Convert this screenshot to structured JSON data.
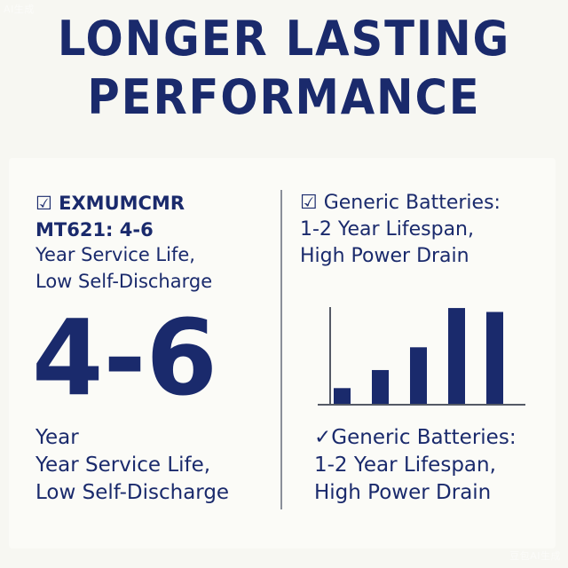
{
  "watermark": {
    "top": "AI生成",
    "bottom": "豆包AI生成"
  },
  "headline": {
    "line1": "LONGER LASTING",
    "line2": "PERFORMANCE"
  },
  "left": {
    "heading_line1": "☑ EXMUMCMR",
    "heading_line2": "MT621: 4-6",
    "sub_line1": "Year Service Life,",
    "sub_line2": "Low Self-Discharge",
    "big_number": "4-6",
    "bottom_line1": "Year",
    "bottom_line2": "Year Service Life,",
    "bottom_line3": "Low Self-Discharge"
  },
  "right": {
    "heading_line1": "☑ Generic Batteries:",
    "heading_line2": "1-2 Year Lifespan,",
    "heading_line3": "High Power Drain",
    "bottom_line1": "✓Generic Batteries:",
    "bottom_line2": "1-2 Year Lifespan,",
    "bottom_line3": "High Power Drain"
  },
  "chart_data": {
    "type": "bar",
    "categories": [
      "",
      "",
      "",
      "",
      ""
    ],
    "values": [
      20,
      43,
      72,
      122,
      117
    ],
    "ylim": [
      0,
      130
    ],
    "grid": false,
    "bar_color": "#1a2a6c"
  },
  "colors": {
    "navy": "#1a2a6c",
    "divider": "#8a8f99",
    "background": "#f7f7f2"
  }
}
